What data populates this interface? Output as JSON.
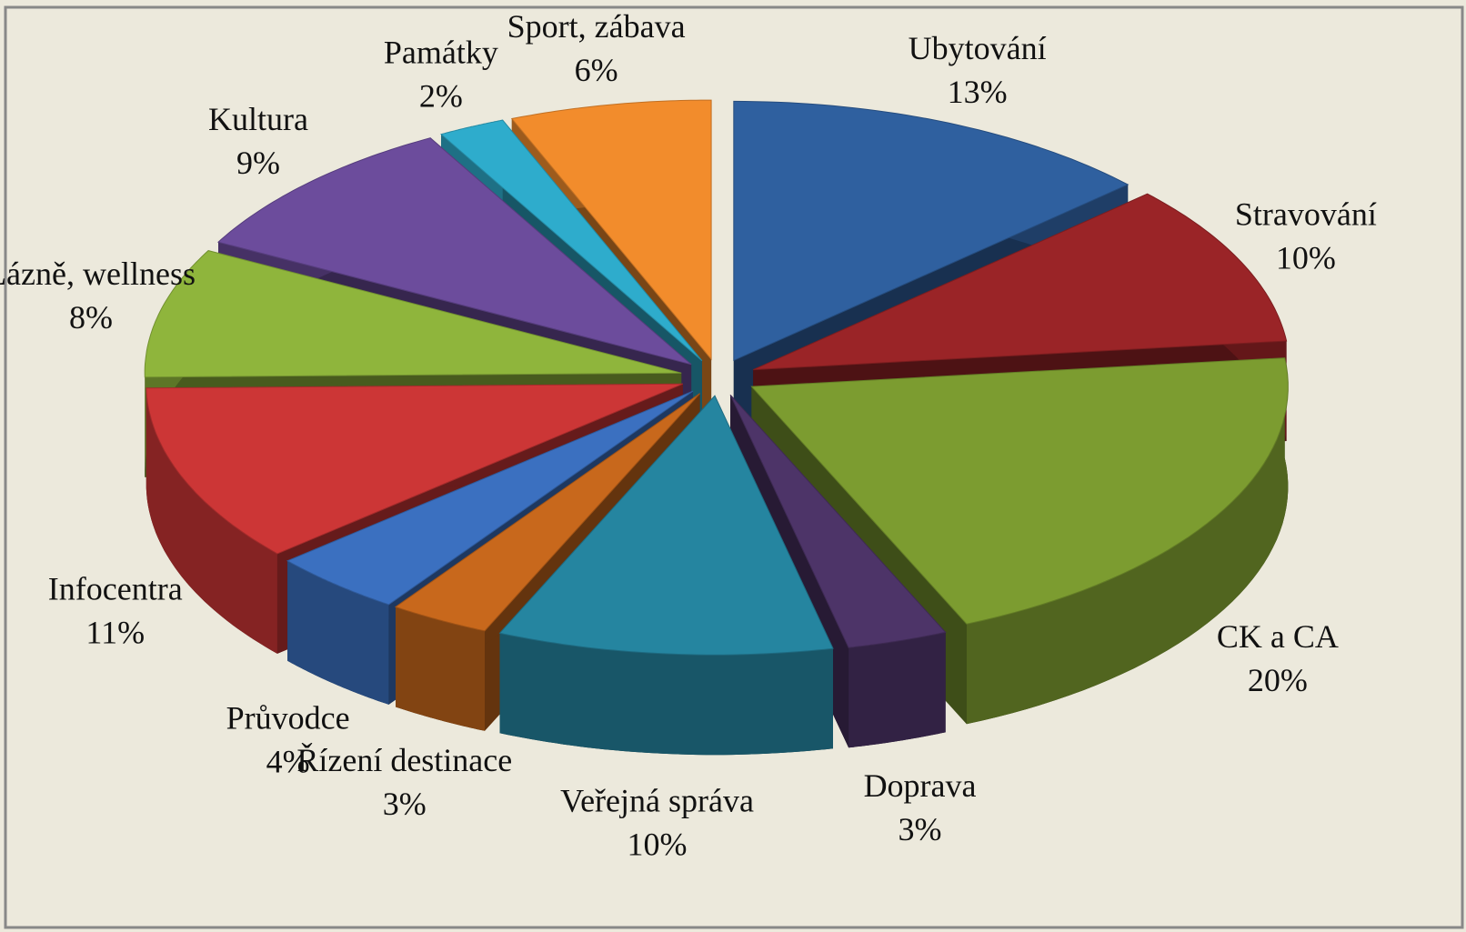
{
  "chart_data": {
    "type": "pie3d",
    "categories": [
      "Ubytování",
      "Stravování",
      "CK a CA",
      "Doprava",
      "Veřejná správa",
      "Řízení destinace",
      "Průvodce",
      "Infocentra",
      "Lázně, wellness",
      "Kultura",
      "Památky",
      "Sport, zábava"
    ],
    "values": [
      13,
      10,
      20,
      3,
      10,
      3,
      4,
      11,
      8,
      9,
      2,
      6
    ],
    "value_labels": [
      "13%",
      "10%",
      "20%",
      "3%",
      "10%",
      "3%",
      "4%",
      "11%",
      "8%",
      "9%",
      "2%",
      "6%"
    ],
    "colors": [
      "#2f609f",
      "#9a2427",
      "#7c9c30",
      "#4d3468",
      "#2585a0",
      "#c8681c",
      "#3b70c0",
      "#cc3636",
      "#8fb53c",
      "#6c4c9c",
      "#2eaccc",
      "#f28c2c"
    ]
  }
}
